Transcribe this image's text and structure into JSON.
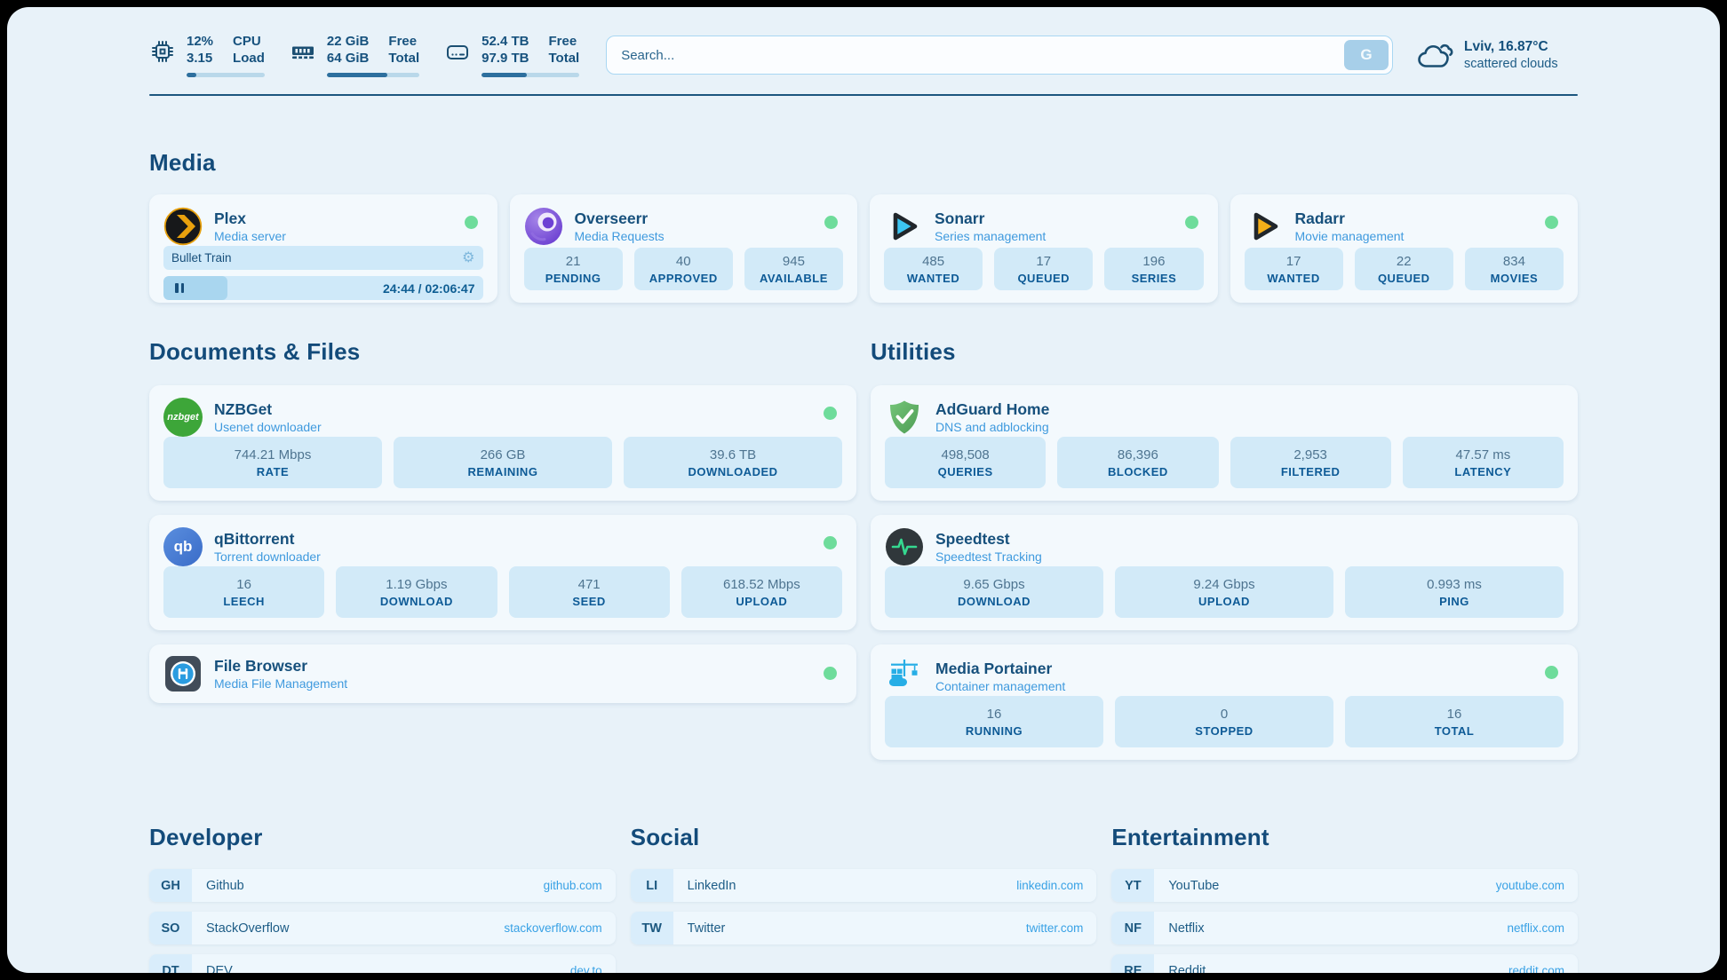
{
  "chrome": {
    "metrics": [
      {
        "name": "cpu",
        "top_value": "12%",
        "bottom_value": "3.15",
        "top_label": "CPU",
        "bottom_label": "Load",
        "progress_pct": 12
      },
      {
        "name": "memory",
        "top_value": "22 GiB",
        "bottom_value": "64 GiB",
        "top_label": "Free",
        "bottom_label": "Total",
        "progress_pct": 65
      },
      {
        "name": "disk",
        "top_value": "52.4 TB",
        "bottom_value": "97.9 TB",
        "top_label": "Free",
        "bottom_label": "Total",
        "progress_pct": 46
      }
    ],
    "search": {
      "placeholder": "Search...",
      "button": "G"
    },
    "weather": {
      "location": "Lviv, 16.87°C",
      "condition": "scattered clouds"
    }
  },
  "sections": {
    "media": "Media",
    "documents": "Documents & Files",
    "utilities": "Utilities"
  },
  "apps": {
    "plex": {
      "name": "Plex",
      "desc": "Media server",
      "now_playing": "Bullet Train",
      "time": "24:44 / 02:06:47",
      "progress_pct": 20
    },
    "overseerr": {
      "name": "Overseerr",
      "desc": "Media Requests",
      "stats": [
        {
          "value": "21",
          "label": "PENDING"
        },
        {
          "value": "40",
          "label": "APPROVED"
        },
        {
          "value": "945",
          "label": "AVAILABLE"
        }
      ]
    },
    "sonarr": {
      "name": "Sonarr",
      "desc": "Series management",
      "stats": [
        {
          "value": "485",
          "label": "WANTED"
        },
        {
          "value": "17",
          "label": "QUEUED"
        },
        {
          "value": "196",
          "label": "SERIES"
        }
      ]
    },
    "radarr": {
      "name": "Radarr",
      "desc": "Movie management",
      "stats": [
        {
          "value": "17",
          "label": "WANTED"
        },
        {
          "value": "22",
          "label": "QUEUED"
        },
        {
          "value": "834",
          "label": "MOVIES"
        }
      ]
    },
    "nzbget": {
      "name": "NZBGet",
      "desc": "Usenet downloader",
      "icon_text": "nzbget",
      "stats": [
        {
          "value": "744.21 Mbps",
          "label": "RATE"
        },
        {
          "value": "266 GB",
          "label": "REMAINING"
        },
        {
          "value": "39.6 TB",
          "label": "DOWNLOADED"
        }
      ]
    },
    "qbittorrent": {
      "name": "qBittorrent",
      "desc": "Torrent downloader",
      "icon_text": "qb",
      "stats": [
        {
          "value": "16",
          "label": "LEECH"
        },
        {
          "value": "1.19 Gbps",
          "label": "DOWNLOAD"
        },
        {
          "value": "471",
          "label": "SEED"
        },
        {
          "value": "618.52 Mbps",
          "label": "UPLOAD"
        }
      ]
    },
    "filebrowser": {
      "name": "File Browser",
      "desc": "Media File Management"
    },
    "adguard": {
      "name": "AdGuard Home",
      "desc": "DNS and adblocking",
      "stats": [
        {
          "value": "498,508",
          "label": "QUERIES"
        },
        {
          "value": "86,396",
          "label": "BLOCKED"
        },
        {
          "value": "2,953",
          "label": "FILTERED"
        },
        {
          "value": "47.57 ms",
          "label": "LATENCY"
        }
      ]
    },
    "speedtest": {
      "name": "Speedtest",
      "desc": "Speedtest Tracking",
      "stats": [
        {
          "value": "9.65 Gbps",
          "label": "DOWNLOAD"
        },
        {
          "value": "9.24 Gbps",
          "label": "UPLOAD"
        },
        {
          "value": "0.993 ms",
          "label": "PING"
        }
      ]
    },
    "portainer": {
      "name": "Media Portainer",
      "desc": "Container management",
      "stats": [
        {
          "value": "16",
          "label": "RUNNING"
        },
        {
          "value": "0",
          "label": "STOPPED"
        },
        {
          "value": "16",
          "label": "TOTAL"
        }
      ]
    }
  },
  "links": {
    "developer": {
      "title": "Developer",
      "items": [
        {
          "abbr": "GH",
          "name": "Github",
          "url": "github.com"
        },
        {
          "abbr": "SO",
          "name": "StackOverflow",
          "url": "stackoverflow.com"
        },
        {
          "abbr": "DT",
          "name": "DEV",
          "url": "dev.to"
        }
      ]
    },
    "social": {
      "title": "Social",
      "items": [
        {
          "abbr": "LI",
          "name": "LinkedIn",
          "url": "linkedin.com"
        },
        {
          "abbr": "TW",
          "name": "Twitter",
          "url": "twitter.com"
        }
      ]
    },
    "entertainment": {
      "title": "Entertainment",
      "items": [
        {
          "abbr": "YT",
          "name": "YouTube",
          "url": "youtube.com"
        },
        {
          "abbr": "NF",
          "name": "Netflix",
          "url": "netflix.com"
        },
        {
          "abbr": "RE",
          "name": "Reddit",
          "url": "reddit.com"
        }
      ]
    }
  },
  "colors": {
    "accent": "#2d6f9e",
    "status_online": "#6edc9b",
    "panel_bg": "#e8f2f9",
    "tile_bg": "#d2eaf8"
  }
}
